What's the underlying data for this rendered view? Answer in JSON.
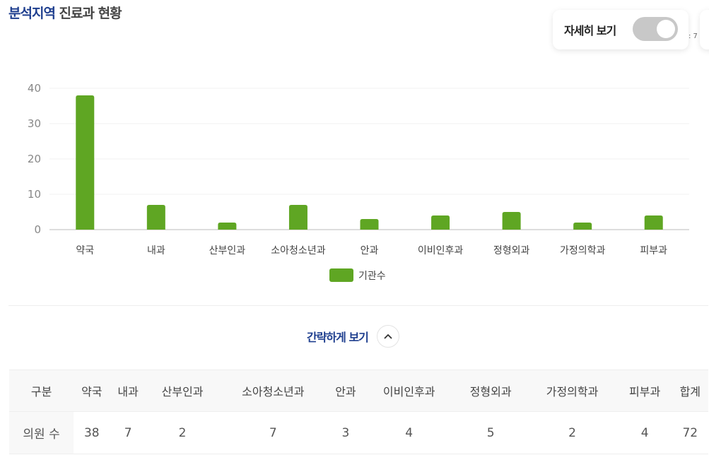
{
  "header": {
    "title_highlight": "분석지역",
    "title_rest": " 진료과 현황"
  },
  "toggle": {
    "label": "자세히 보기",
    "on": false
  },
  "partial_text": ": 7",
  "collapse": {
    "label": "간략하게 보기",
    "icon": "chevron-up-icon"
  },
  "colors": {
    "bar": "#5fa623",
    "accent": "#1f3f8f"
  },
  "chart_data": {
    "type": "bar",
    "categories": [
      "약국",
      "내과",
      "산부인과",
      "소아청소년과",
      "안과",
      "이비인후과",
      "정형외과",
      "가정의학과",
      "피부과"
    ],
    "series": [
      {
        "name": "기관수",
        "values": [
          38,
          7,
          2,
          7,
          3,
          4,
          5,
          2,
          4
        ]
      }
    ],
    "ylim": [
      0,
      40
    ],
    "yticks": [
      "0",
      "10",
      "20",
      "30",
      "40"
    ],
    "grid": true,
    "legend": "bottom"
  },
  "table": {
    "headers": [
      "구분",
      "약국",
      "내과",
      "산부인과",
      "소아청소년과",
      "안과",
      "이비인후과",
      "정형외과",
      "가정의학과",
      "피부과",
      "합계"
    ],
    "row_label": "의원 수",
    "values": [
      "38",
      "7",
      "2",
      "7",
      "3",
      "4",
      "5",
      "2",
      "4",
      "72"
    ]
  }
}
